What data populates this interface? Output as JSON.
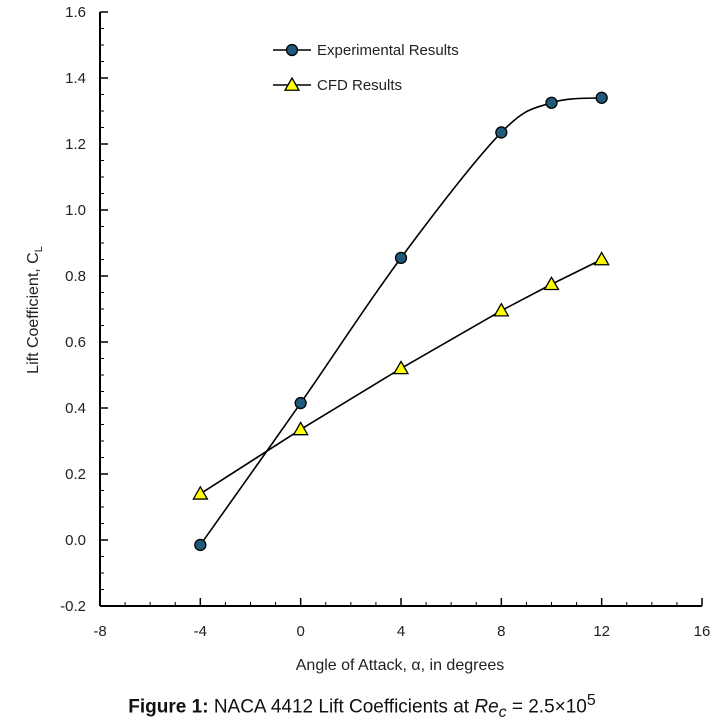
{
  "chart_data": {
    "type": "line",
    "xlabel": "Angle of Attack, α, in degrees",
    "ylabel_main": "Lift Coefficient, C",
    "ylabel_sub": "L",
    "xlim": [
      -8,
      16
    ],
    "ylim": [
      -0.2,
      1.6
    ],
    "xticks": [
      "-8",
      "-4",
      "0",
      "4",
      "8",
      "12",
      "16"
    ],
    "yticks": [
      "-0.2",
      "0.0",
      "0.2",
      "0.4",
      "0.6",
      "0.8",
      "1.0",
      "1.2",
      "1.4",
      "1.6"
    ],
    "grid": false,
    "legend_position": "top-center",
    "series": [
      {
        "name": "Experimental Results",
        "marker": "circle",
        "line": "smooth",
        "marker_color": "#1f5a7a",
        "x": [
          -4,
          0,
          4,
          8,
          10,
          12
        ],
        "y": [
          -0.015,
          0.415,
          0.855,
          1.235,
          1.325,
          1.34
        ]
      },
      {
        "name": "CFD Results",
        "marker": "triangle",
        "line": "straight",
        "marker_color": "#ffff00",
        "x": [
          -4,
          0,
          4,
          8,
          10,
          12
        ],
        "y": [
          0.14,
          0.335,
          0.52,
          0.695,
          0.775,
          0.85
        ]
      }
    ]
  },
  "caption": {
    "label": "Figure 1:",
    "text": "NACA 4412 Lift Coefficients at",
    "re_symbol": "Re",
    "re_sub": "c",
    "equals": "= 2.5×10",
    "exponent": "5"
  }
}
